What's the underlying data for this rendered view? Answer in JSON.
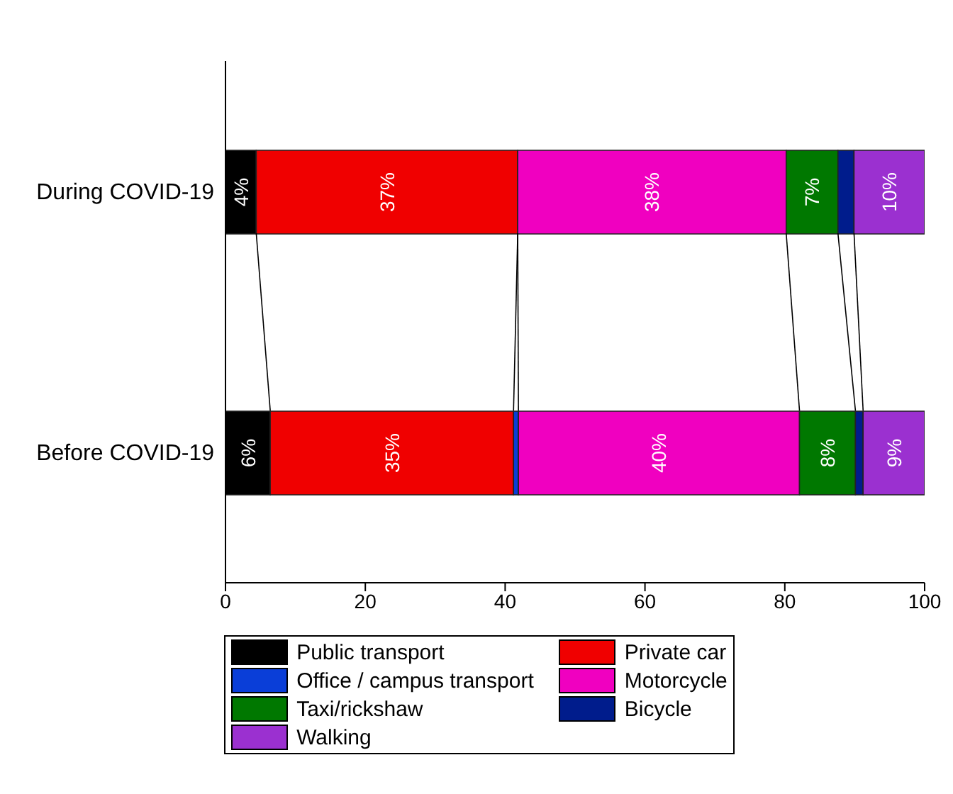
{
  "chart_data": {
    "type": "bar",
    "orientation": "horizontal",
    "stacked": true,
    "categories": [
      "During COVID-19",
      "Before COVID-19"
    ],
    "xlim": [
      0,
      100
    ],
    "xticks": [
      0,
      20,
      40,
      60,
      80,
      100
    ],
    "legend": "bottom",
    "grid": false,
    "series": [
      {
        "name": "Public transport",
        "color": "#000000",
        "values": [
          4.4,
          6.4
        ],
        "value_labels": [
          "4%",
          "6%"
        ]
      },
      {
        "name": "Private car",
        "color": "#f00000",
        "values": [
          37.4,
          34.8
        ],
        "value_labels": [
          "37%",
          "35%"
        ]
      },
      {
        "name": "Office / campus transport",
        "color": "#0a3ed8",
        "values": [
          0,
          0.7
        ],
        "value_labels": [
          null,
          null
        ]
      },
      {
        "name": "Motorcycle",
        "color": "#f000c0",
        "values": [
          38.4,
          40.2
        ],
        "value_labels": [
          "38%",
          "40%"
        ]
      },
      {
        "name": "Taxi/rickshaw",
        "color": "#007800",
        "values": [
          7.4,
          8.0
        ],
        "value_labels": [
          "7%",
          "8%"
        ]
      },
      {
        "name": "Bicycle",
        "color": "#001c8c",
        "values": [
          2.3,
          1.1
        ],
        "value_labels": [
          null,
          null
        ]
      },
      {
        "name": "Walking",
        "color": "#9b30d0",
        "values": [
          10.1,
          8.8
        ],
        "value_labels": [
          "10%",
          "9%"
        ]
      }
    ]
  }
}
